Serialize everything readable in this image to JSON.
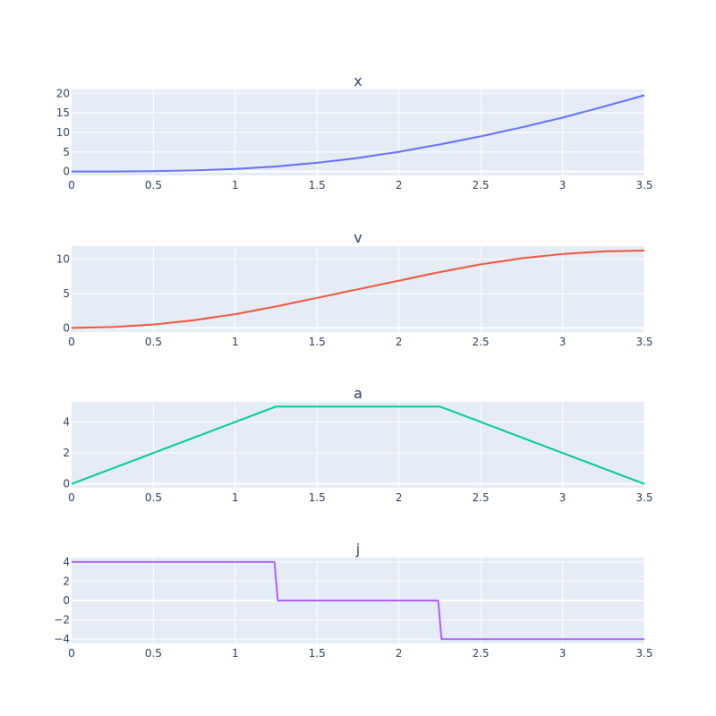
{
  "colors": {
    "plot_background": "#e5ecf6",
    "grid": "#ffffff",
    "text": "#2a3f5f"
  },
  "chart_data": [
    {
      "type": "line",
      "title": "x",
      "xlim": [
        0,
        3.5
      ],
      "ylim": [
        -1,
        21
      ],
      "x_ticks": [
        0,
        0.5,
        1,
        1.5,
        2,
        2.5,
        3,
        3.5
      ],
      "y_ticks": [
        0,
        5,
        10,
        15,
        20
      ],
      "grid": true,
      "series": [
        {
          "color": "#636efa",
          "x": [
            0,
            0.25,
            0.5,
            0.75,
            1,
            1.25,
            1.5,
            1.75,
            2,
            2.25,
            2.5,
            2.75,
            3,
            3.25,
            3.5
          ],
          "y": [
            0,
            0.01,
            0.08,
            0.28,
            0.67,
            1.3,
            2.22,
            3.47,
            5.06,
            6.92,
            9.0,
            11.3,
            13.8,
            16.6,
            19.5
          ]
        }
      ]
    },
    {
      "type": "line",
      "title": "v",
      "xlim": [
        0,
        3.5
      ],
      "ylim": [
        -0.6,
        11.9
      ],
      "x_ticks": [
        0,
        0.5,
        1,
        1.5,
        2,
        2.5,
        3,
        3.5
      ],
      "y_ticks": [
        0,
        5,
        10
      ],
      "grid": true,
      "series": [
        {
          "color": "#ef553b",
          "x": [
            0,
            0.25,
            0.5,
            0.75,
            1,
            1.25,
            1.5,
            1.75,
            2,
            2.25,
            2.5,
            2.75,
            3,
            3.25,
            3.5
          ],
          "y": [
            0,
            0.13,
            0.5,
            1.13,
            2.0,
            3.13,
            4.38,
            5.63,
            6.88,
            8.13,
            9.25,
            10.13,
            10.75,
            11.13,
            11.25
          ]
        }
      ]
    },
    {
      "type": "line",
      "title": "a",
      "xlim": [
        0,
        3.5
      ],
      "ylim": [
        -0.25,
        5.3
      ],
      "x_ticks": [
        0,
        0.5,
        1,
        1.5,
        2,
        2.5,
        3,
        3.5
      ],
      "y_ticks": [
        0,
        2,
        4
      ],
      "grid": true,
      "series": [
        {
          "color": "#00cc96",
          "x": [
            0,
            1.25,
            2.25,
            3.5
          ],
          "y": [
            0,
            5,
            5,
            0
          ]
        }
      ]
    },
    {
      "type": "line",
      "title": "j",
      "xlim": [
        0,
        3.5
      ],
      "ylim": [
        -4.45,
        4.45
      ],
      "x_ticks": [
        0,
        0.5,
        1,
        1.5,
        2,
        2.5,
        3,
        3.5
      ],
      "y_ticks": [
        4,
        2,
        0,
        -2,
        -4
      ],
      "y_tick_labels": [
        "4",
        "2",
        "0",
        "−2",
        "−4"
      ],
      "grid": true,
      "series": [
        {
          "color": "#ab63fa",
          "x": [
            0,
            1.24,
            1.26,
            2.24,
            2.26,
            3.5
          ],
          "y": [
            4,
            4,
            0,
            0,
            -4,
            -4
          ]
        }
      ]
    }
  ]
}
